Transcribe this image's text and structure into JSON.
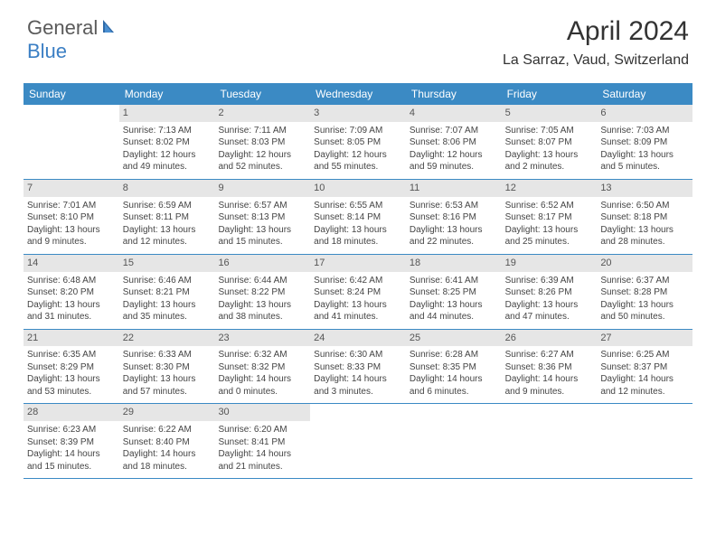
{
  "brand": {
    "part1": "General",
    "part2": "Blue"
  },
  "title": "April 2024",
  "location": "La Sarraz, Vaud, Switzerland",
  "colors": {
    "header_bg": "#3b8ac4",
    "daynum_bg": "#e6e6e6",
    "border": "#3b8ac4",
    "text": "#333333",
    "brand_blue": "#3b7fc4"
  },
  "day_headers": [
    "Sunday",
    "Monday",
    "Tuesday",
    "Wednesday",
    "Thursday",
    "Friday",
    "Saturday"
  ],
  "weeks": [
    [
      null,
      {
        "n": "1",
        "sr": "Sunrise: 7:13 AM",
        "ss": "Sunset: 8:02 PM",
        "d1": "Daylight: 12 hours",
        "d2": "and 49 minutes."
      },
      {
        "n": "2",
        "sr": "Sunrise: 7:11 AM",
        "ss": "Sunset: 8:03 PM",
        "d1": "Daylight: 12 hours",
        "d2": "and 52 minutes."
      },
      {
        "n": "3",
        "sr": "Sunrise: 7:09 AM",
        "ss": "Sunset: 8:05 PM",
        "d1": "Daylight: 12 hours",
        "d2": "and 55 minutes."
      },
      {
        "n": "4",
        "sr": "Sunrise: 7:07 AM",
        "ss": "Sunset: 8:06 PM",
        "d1": "Daylight: 12 hours",
        "d2": "and 59 minutes."
      },
      {
        "n": "5",
        "sr": "Sunrise: 7:05 AM",
        "ss": "Sunset: 8:07 PM",
        "d1": "Daylight: 13 hours",
        "d2": "and 2 minutes."
      },
      {
        "n": "6",
        "sr": "Sunrise: 7:03 AM",
        "ss": "Sunset: 8:09 PM",
        "d1": "Daylight: 13 hours",
        "d2": "and 5 minutes."
      }
    ],
    [
      {
        "n": "7",
        "sr": "Sunrise: 7:01 AM",
        "ss": "Sunset: 8:10 PM",
        "d1": "Daylight: 13 hours",
        "d2": "and 9 minutes."
      },
      {
        "n": "8",
        "sr": "Sunrise: 6:59 AM",
        "ss": "Sunset: 8:11 PM",
        "d1": "Daylight: 13 hours",
        "d2": "and 12 minutes."
      },
      {
        "n": "9",
        "sr": "Sunrise: 6:57 AM",
        "ss": "Sunset: 8:13 PM",
        "d1": "Daylight: 13 hours",
        "d2": "and 15 minutes."
      },
      {
        "n": "10",
        "sr": "Sunrise: 6:55 AM",
        "ss": "Sunset: 8:14 PM",
        "d1": "Daylight: 13 hours",
        "d2": "and 18 minutes."
      },
      {
        "n": "11",
        "sr": "Sunrise: 6:53 AM",
        "ss": "Sunset: 8:16 PM",
        "d1": "Daylight: 13 hours",
        "d2": "and 22 minutes."
      },
      {
        "n": "12",
        "sr": "Sunrise: 6:52 AM",
        "ss": "Sunset: 8:17 PM",
        "d1": "Daylight: 13 hours",
        "d2": "and 25 minutes."
      },
      {
        "n": "13",
        "sr": "Sunrise: 6:50 AM",
        "ss": "Sunset: 8:18 PM",
        "d1": "Daylight: 13 hours",
        "d2": "and 28 minutes."
      }
    ],
    [
      {
        "n": "14",
        "sr": "Sunrise: 6:48 AM",
        "ss": "Sunset: 8:20 PM",
        "d1": "Daylight: 13 hours",
        "d2": "and 31 minutes."
      },
      {
        "n": "15",
        "sr": "Sunrise: 6:46 AM",
        "ss": "Sunset: 8:21 PM",
        "d1": "Daylight: 13 hours",
        "d2": "and 35 minutes."
      },
      {
        "n": "16",
        "sr": "Sunrise: 6:44 AM",
        "ss": "Sunset: 8:22 PM",
        "d1": "Daylight: 13 hours",
        "d2": "and 38 minutes."
      },
      {
        "n": "17",
        "sr": "Sunrise: 6:42 AM",
        "ss": "Sunset: 8:24 PM",
        "d1": "Daylight: 13 hours",
        "d2": "and 41 minutes."
      },
      {
        "n": "18",
        "sr": "Sunrise: 6:41 AM",
        "ss": "Sunset: 8:25 PM",
        "d1": "Daylight: 13 hours",
        "d2": "and 44 minutes."
      },
      {
        "n": "19",
        "sr": "Sunrise: 6:39 AM",
        "ss": "Sunset: 8:26 PM",
        "d1": "Daylight: 13 hours",
        "d2": "and 47 minutes."
      },
      {
        "n": "20",
        "sr": "Sunrise: 6:37 AM",
        "ss": "Sunset: 8:28 PM",
        "d1": "Daylight: 13 hours",
        "d2": "and 50 minutes."
      }
    ],
    [
      {
        "n": "21",
        "sr": "Sunrise: 6:35 AM",
        "ss": "Sunset: 8:29 PM",
        "d1": "Daylight: 13 hours",
        "d2": "and 53 minutes."
      },
      {
        "n": "22",
        "sr": "Sunrise: 6:33 AM",
        "ss": "Sunset: 8:30 PM",
        "d1": "Daylight: 13 hours",
        "d2": "and 57 minutes."
      },
      {
        "n": "23",
        "sr": "Sunrise: 6:32 AM",
        "ss": "Sunset: 8:32 PM",
        "d1": "Daylight: 14 hours",
        "d2": "and 0 minutes."
      },
      {
        "n": "24",
        "sr": "Sunrise: 6:30 AM",
        "ss": "Sunset: 8:33 PM",
        "d1": "Daylight: 14 hours",
        "d2": "and 3 minutes."
      },
      {
        "n": "25",
        "sr": "Sunrise: 6:28 AM",
        "ss": "Sunset: 8:35 PM",
        "d1": "Daylight: 14 hours",
        "d2": "and 6 minutes."
      },
      {
        "n": "26",
        "sr": "Sunrise: 6:27 AM",
        "ss": "Sunset: 8:36 PM",
        "d1": "Daylight: 14 hours",
        "d2": "and 9 minutes."
      },
      {
        "n": "27",
        "sr": "Sunrise: 6:25 AM",
        "ss": "Sunset: 8:37 PM",
        "d1": "Daylight: 14 hours",
        "d2": "and 12 minutes."
      }
    ],
    [
      {
        "n": "28",
        "sr": "Sunrise: 6:23 AM",
        "ss": "Sunset: 8:39 PM",
        "d1": "Daylight: 14 hours",
        "d2": "and 15 minutes."
      },
      {
        "n": "29",
        "sr": "Sunrise: 6:22 AM",
        "ss": "Sunset: 8:40 PM",
        "d1": "Daylight: 14 hours",
        "d2": "and 18 minutes."
      },
      {
        "n": "30",
        "sr": "Sunrise: 6:20 AM",
        "ss": "Sunset: 8:41 PM",
        "d1": "Daylight: 14 hours",
        "d2": "and 21 minutes."
      },
      null,
      null,
      null,
      null
    ]
  ]
}
